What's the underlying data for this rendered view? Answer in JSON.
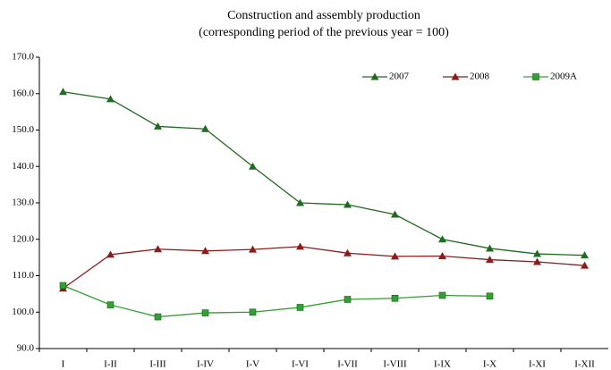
{
  "chart_data": {
    "type": "line",
    "title": "Construction and assembly production",
    "subtitle": "(corresponding period of the previous year = 100)",
    "categories": [
      "I",
      "I-II",
      "I-III",
      "I-IV",
      "I-V",
      "I-VI",
      "I-VII",
      "I-VIII",
      "I-IX",
      "I-X",
      "I-XI",
      "I-XII"
    ],
    "series": [
      {
        "name": "2007",
        "color": "#1f6b1f",
        "marker": "triangle",
        "values": [
          160.5,
          158.5,
          151,
          150.3,
          140,
          130,
          129.5,
          126.8,
          120,
          117.5,
          116,
          115.6
        ]
      },
      {
        "name": "2008",
        "color": "#8b1c1c",
        "marker": "triangle",
        "values": [
          106.5,
          115.8,
          117.3,
          116.8,
          117.2,
          118,
          116.2,
          115.3,
          115.4,
          114.4,
          113.8,
          112.8
        ]
      },
      {
        "name": "2009A",
        "color": "#33a033",
        "marker": "square",
        "values": [
          107.3,
          102,
          98.7,
          99.8,
          100,
          101.3,
          103.5,
          103.8,
          104.6,
          104.4,
          null,
          null
        ]
      }
    ],
    "ylim": [
      90,
      170
    ],
    "yticks": [
      {
        "value": 90,
        "label": "90.0"
      },
      {
        "value": 100,
        "label": "100.0"
      },
      {
        "value": 110,
        "label": "110.0"
      },
      {
        "value": 120,
        "label": "120.0"
      },
      {
        "value": 130,
        "label": "130.0"
      },
      {
        "value": 140,
        "label": "140.0"
      },
      {
        "value": 150,
        "label": "150.0"
      },
      {
        "value": 160,
        "label": "160.0"
      },
      {
        "value": 170,
        "label": "170.0"
      }
    ],
    "legend": "top-right"
  }
}
